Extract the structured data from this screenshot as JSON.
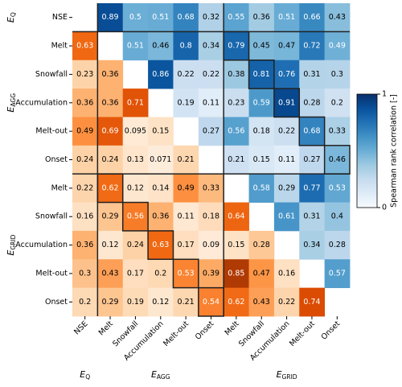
{
  "chart_data": {
    "type": "heatmap",
    "groups": [
      {
        "symbol": "E",
        "subscript": "Q",
        "categories": [
          "NSE"
        ]
      },
      {
        "symbol": "E",
        "subscript": "AGG",
        "categories": [
          "Melt",
          "Snowfall",
          "Accumulation",
          "Melt-out",
          "Onset"
        ]
      },
      {
        "symbol": "E",
        "subscript": "GRID",
        "categories": [
          "Melt",
          "Snowfall",
          "Accumulation",
          "Melt-out",
          "Onset"
        ]
      }
    ],
    "values": [
      [
        null,
        0.89,
        0.5,
        0.51,
        0.68,
        0.32,
        0.55,
        0.36,
        0.51,
        0.66,
        0.43
      ],
      [
        0.63,
        null,
        0.51,
        0.46,
        0.8,
        0.34,
        0.79,
        0.45,
        0.47,
        0.72,
        0.49
      ],
      [
        0.23,
        0.36,
        null,
        0.86,
        0.22,
        0.22,
        0.38,
        0.81,
        0.76,
        0.31,
        0.3
      ],
      [
        0.36,
        0.36,
        0.71,
        null,
        0.19,
        0.11,
        0.23,
        0.59,
        0.91,
        0.28,
        0.2
      ],
      [
        0.49,
        0.69,
        0.095,
        0.15,
        null,
        0.27,
        0.56,
        0.18,
        0.22,
        0.68,
        0.33
      ],
      [
        0.24,
        0.24,
        0.13,
        0.071,
        0.21,
        null,
        0.21,
        0.15,
        0.11,
        0.27,
        0.46
      ],
      [
        0.22,
        0.62,
        0.12,
        0.14,
        0.49,
        0.33,
        null,
        0.58,
        0.29,
        0.77,
        0.53
      ],
      [
        0.16,
        0.29,
        0.56,
        0.36,
        0.11,
        0.18,
        0.64,
        null,
        0.61,
        0.31,
        0.4
      ],
      [
        0.36,
        0.12,
        0.24,
        0.63,
        0.17,
        0.09,
        0.15,
        0.28,
        null,
        0.34,
        0.28
      ],
      [
        0.3,
        0.43,
        0.17,
        0.2,
        0.53,
        0.39,
        0.85,
        0.47,
        0.16,
        null,
        0.57
      ],
      [
        0.2,
        0.29,
        0.19,
        0.12,
        0.21,
        0.54,
        0.62,
        0.43,
        0.22,
        0.74,
        null
      ]
    ],
    "upper_colors": [
      "#f7fbff",
      "#deebf7",
      "#c6dbef",
      "#9ecae1",
      "#6baed6",
      "#4292c6",
      "#2171b5",
      "#08519c",
      "#08306b"
    ],
    "lower_colors": [
      "#fff5eb",
      "#fee6ce",
      "#fdd0a2",
      "#fdae6b",
      "#fd8d3c",
      "#f16913",
      "#d94801",
      "#a63603",
      "#7f2704"
    ],
    "clim": [
      0,
      1
    ],
    "colorbar_ticks": [
      0,
      1
    ],
    "colorbar_label": "Spearman rank correlation [-]"
  }
}
